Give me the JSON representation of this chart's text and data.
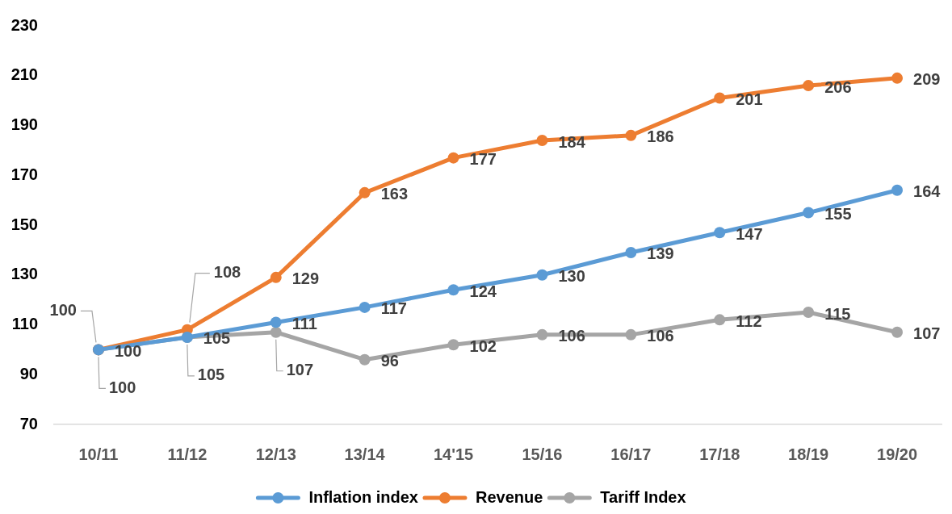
{
  "chart_data": {
    "type": "line",
    "categories": [
      "10/11",
      "11/12",
      "12/13",
      "13/14",
      "14'15",
      "15/16",
      "16/17",
      "17/18",
      "18/19",
      "19/20"
    ],
    "series": [
      {
        "name": "Inflation index",
        "color": "#5b9bd5",
        "values": [
          100,
          105,
          111,
          117,
          124,
          130,
          139,
          147,
          155,
          164
        ]
      },
      {
        "name": "Revenue",
        "color": "#ed7d31",
        "values": [
          100,
          108,
          129,
          163,
          177,
          184,
          186,
          201,
          206,
          209
        ]
      },
      {
        "name": "Tariff Index",
        "color": "#a5a5a5",
        "values": [
          100,
          105,
          107,
          96,
          102,
          106,
          106,
          112,
          115,
          107
        ]
      }
    ],
    "ylim": [
      70,
      230
    ],
    "yticks": [
      70,
      90,
      110,
      130,
      150,
      170,
      190,
      210,
      230
    ],
    "data_labels": true,
    "legend": "bottom",
    "marker": "circle",
    "line_style": "solid"
  }
}
